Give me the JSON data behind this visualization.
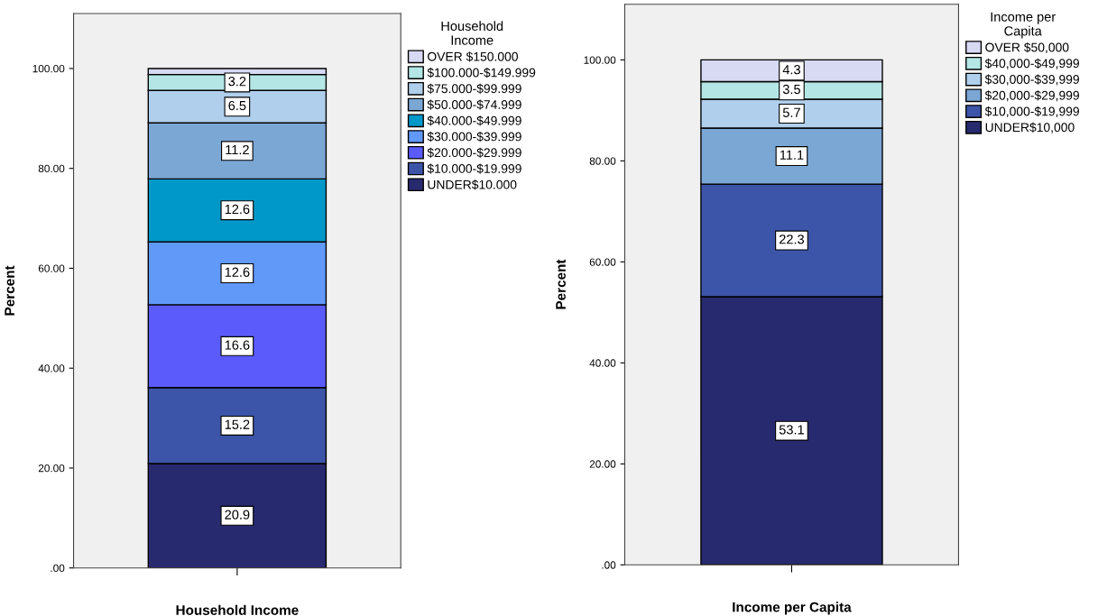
{
  "chart_data": [
    {
      "type": "bar",
      "stacked": true,
      "xlabel": "Household Income",
      "ylabel": "Percent",
      "legend_title": "Household Income",
      "legend": "right",
      "categories": [
        null
      ],
      "ylim": [
        0,
        111
      ],
      "yticks": [
        {
          "value": 0,
          "label": ".00"
        },
        {
          "value": 20,
          "label": "20.00"
        },
        {
          "value": 40,
          "label": "40.00"
        },
        {
          "value": 60,
          "label": "60.00"
        },
        {
          "value": 80,
          "label": "80.00"
        },
        {
          "value": 100,
          "label": "100.00"
        }
      ],
      "series": [
        {
          "name": "UNDER$10.000",
          "color": "#272a6e",
          "values": [
            20.9
          ],
          "value_labels": [
            "20.9"
          ]
        },
        {
          "name": "$10.000-$19.999",
          "color": "#3d55a8",
          "values": [
            15.2
          ],
          "value_labels": [
            "15.2"
          ]
        },
        {
          "name": "$20.000-$29.999",
          "color": "#5b5bfc",
          "values": [
            16.6
          ],
          "value_labels": [
            "16.6"
          ]
        },
        {
          "name": "$30.000-$39.999",
          "color": "#6199f9",
          "values": [
            12.6
          ],
          "value_labels": [
            "12.6"
          ]
        },
        {
          "name": "$40.000-$49.999",
          "color": "#0098c8",
          "values": [
            12.6
          ],
          "value_labels": [
            "12.6"
          ]
        },
        {
          "name": "$50.000-$74.999",
          "color": "#7ba7d5",
          "values": [
            11.2
          ],
          "value_labels": [
            "11.2"
          ]
        },
        {
          "name": "$75.000-$99.999",
          "color": "#b0cfec",
          "values": [
            6.5
          ],
          "value_labels": [
            "6.5"
          ]
        },
        {
          "name": "$100.000-$149.999",
          "color": "#b3e6e4",
          "values": [
            3.2
          ],
          "value_labels": [
            "3.2"
          ]
        },
        {
          "name": "OVER $150.000",
          "color": "#d8daf4",
          "values": [
            1.2
          ],
          "value_labels": [
            null
          ]
        }
      ]
    },
    {
      "type": "bar",
      "stacked": true,
      "xlabel": "Income per Capita",
      "ylabel": "Percent",
      "legend_title": "Income per Capita",
      "legend": "right",
      "categories": [
        null
      ],
      "ylim": [
        0,
        111
      ],
      "yticks": [
        {
          "value": 0,
          "label": ".00"
        },
        {
          "value": 20,
          "label": "20.00"
        },
        {
          "value": 40,
          "label": "40.00"
        },
        {
          "value": 60,
          "label": "60.00"
        },
        {
          "value": 80,
          "label": "80.00"
        },
        {
          "value": 100,
          "label": "100.00"
        }
      ],
      "data_labels": true,
      "series": [
        {
          "name": "UNDER$10,000",
          "color": "#272a6e",
          "values": [
            53.1
          ]
        },
        {
          "name": "$10,000-$19,999",
          "color": "#3d55a8",
          "values": [
            22.3
          ]
        },
        {
          "name": "$20,000-$29,999",
          "color": "#7ba7d5",
          "values": [
            11.1
          ]
        },
        {
          "name": "$30,000-$39,999",
          "color": "#b0cfec",
          "values": [
            5.7
          ]
        },
        {
          "name": "$40,000-$49,999",
          "color": "#b3e6e4",
          "values": [
            3.5
          ]
        },
        {
          "name": "OVER $50,000",
          "color": "#d8daf4",
          "values": [
            4.3
          ]
        }
      ]
    }
  ]
}
